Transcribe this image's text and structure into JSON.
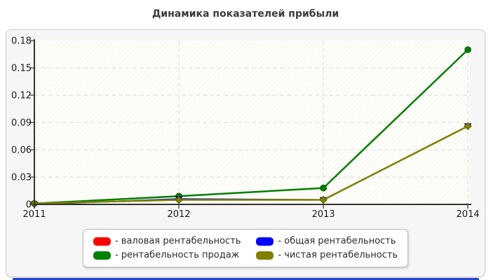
{
  "title": "Динамика показателей прибыли",
  "chart_data": {
    "type": "line",
    "x": [
      "2011",
      "2012",
      "2013",
      "2014"
    ],
    "series": [
      {
        "name": "валовая рентабельность",
        "color": "#ff0000",
        "marker": "square",
        "line_width": 2,
        "values": [
          0.001,
          0.009,
          0.018,
          0.17
        ]
      },
      {
        "name": "рентабельность продаж",
        "color": "#008000",
        "marker": "circle",
        "line_width": 2.5,
        "values": [
          0.001,
          0.009,
          0.018,
          0.17
        ]
      },
      {
        "name": "общая рентабельность",
        "color": "#0000cc",
        "marker": "triangle-down",
        "line_width": 2,
        "values": [
          0.0,
          0.006,
          0.005,
          0.086
        ]
      },
      {
        "name": "чистая рентабельность",
        "color": "#808000",
        "marker": "diamond",
        "line_width": 2.5,
        "values": [
          0.001,
          0.005,
          0.005,
          0.086
        ]
      }
    ],
    "ylim": [
      0,
      0.18
    ],
    "yticks": [
      0,
      0.03,
      0.06,
      0.09,
      0.12,
      0.15,
      0.18
    ],
    "ytick_labels": [
      "0",
      "0.03",
      "0.06",
      "0.09",
      "0.12",
      "0.15",
      "0.18"
    ],
    "grid": "dashed horizontal at each y tick, dashed vertical at 2012-2014",
    "legend_position": "bottom",
    "plot_background": "white with light diagonal hatch"
  },
  "legend": {
    "items": [
      {
        "label": "- валовая рентабельность",
        "color": "#ff0000"
      },
      {
        "label": "- общая рентабельность",
        "color": "#0000ff"
      },
      {
        "label": "- рентабельность продаж",
        "color": "#008000"
      },
      {
        "label": "- чистая рентабельность",
        "color": "#808000"
      }
    ]
  },
  "colors": {
    "panel_background": "#f6f6f6",
    "panel_border": "#cccccc",
    "grid_line": "#d9d9d9",
    "axis_line": "#333333",
    "tick_label": "#1a1a1a",
    "hatch_stripe": "#ececd9",
    "bottom_strip": "#2a46c8"
  }
}
